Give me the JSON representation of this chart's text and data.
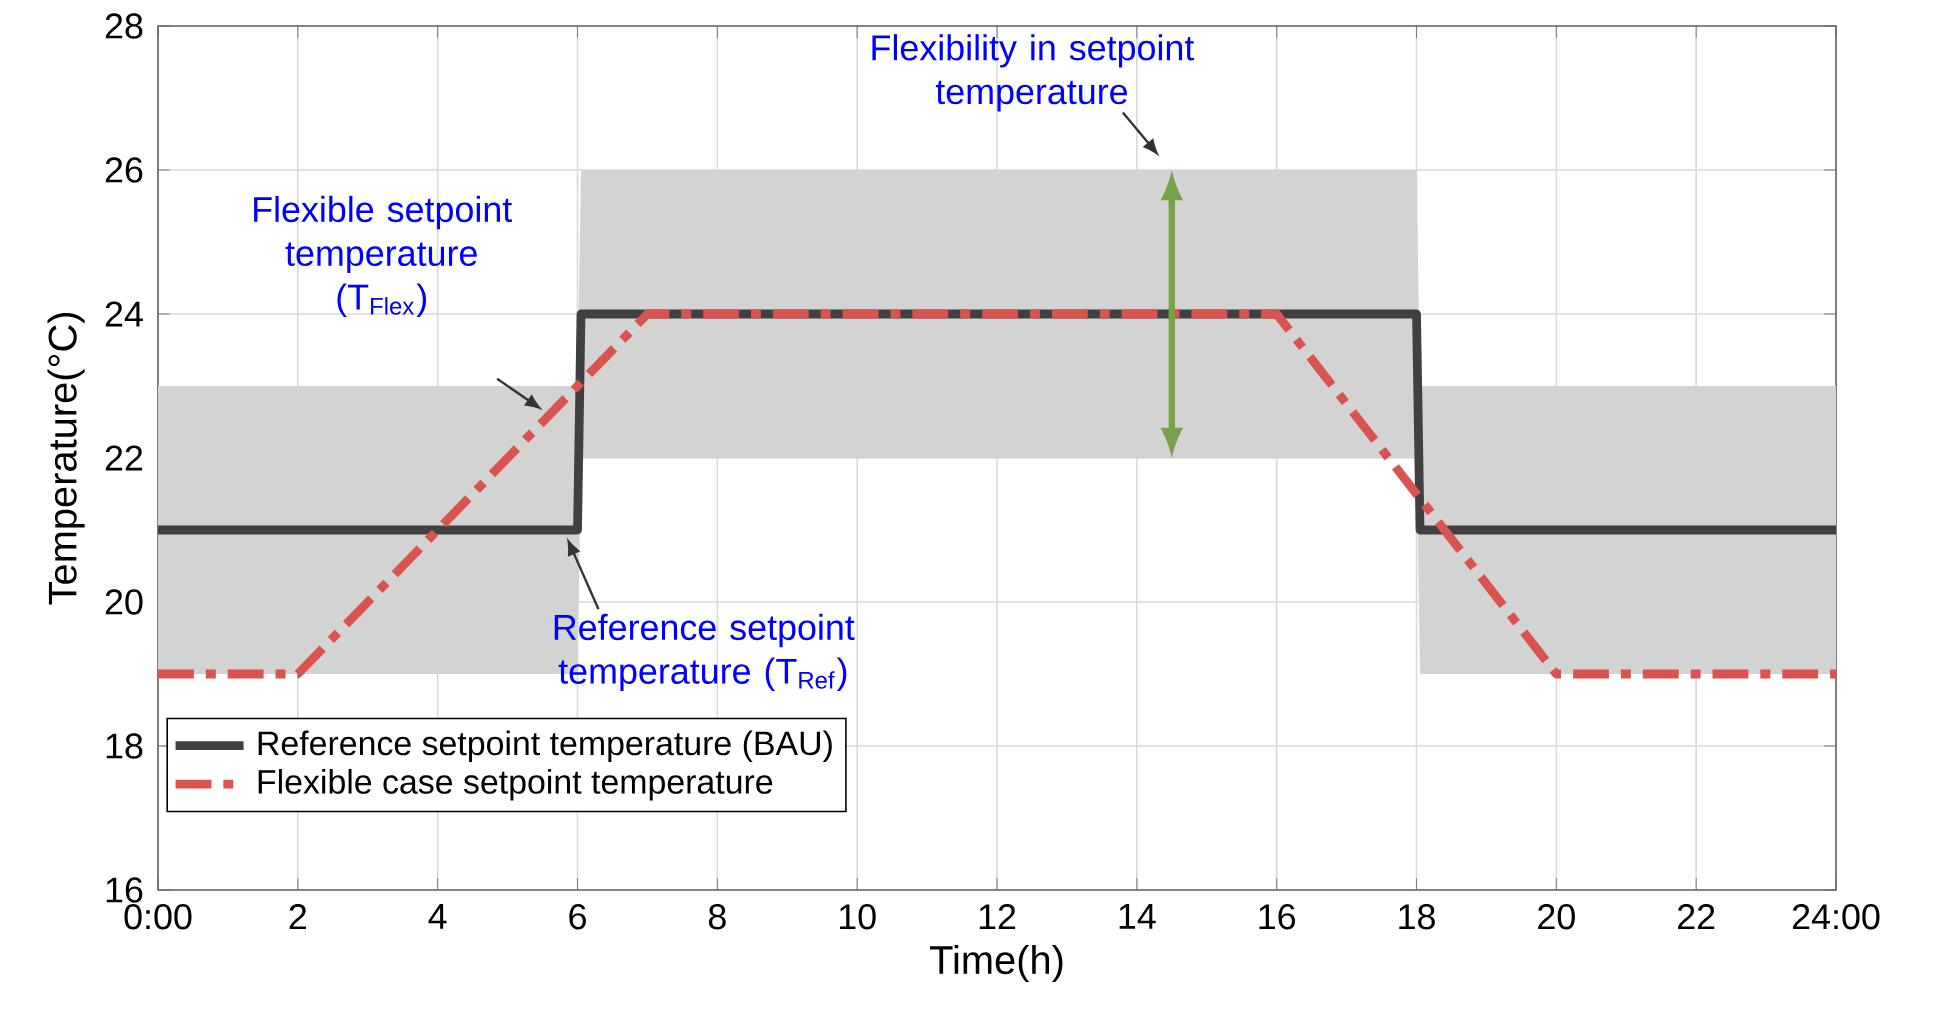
{
  "chart_data": {
    "type": "line",
    "xlabel": "Time(h)",
    "ylabel": "Temperature(°C)",
    "xlim": [
      0,
      24
    ],
    "ylim": [
      16,
      28
    ],
    "xticks": [
      {
        "value": 0,
        "label": "0:00"
      },
      2,
      4,
      6,
      8,
      10,
      12,
      14,
      16,
      18,
      20,
      22,
      {
        "value": 24,
        "label": "24:00"
      }
    ],
    "yticks": [
      16,
      18,
      20,
      22,
      24,
      26,
      28
    ],
    "grid": true,
    "legend": "bottom left",
    "series": [
      {
        "name": "Reference setpoint temperature (BAU)",
        "color": "#404040",
        "line_style": "solid",
        "x": [
          0,
          6,
          6.05,
          18,
          18.05,
          24
        ],
        "values": [
          21,
          21,
          24,
          24,
          21,
          21
        ],
        "lower": [
          19,
          19,
          22,
          22,
          19,
          19
        ],
        "upper": [
          23,
          23,
          26,
          26,
          23,
          23
        ]
      },
      {
        "name": "Flexible case setpoint temperature",
        "color": "#d9534f",
        "line_style": "dashdot",
        "x": [
          0,
          2,
          7,
          16,
          20,
          24
        ],
        "values": [
          19,
          19,
          24,
          24,
          19,
          19
        ]
      }
    ],
    "annotations": [
      {
        "text": "Flexibility in setpoint temperature",
        "x": 14.4,
        "y": 26.1
      },
      {
        "text": "Flexible setpoint temperature (T$_{Flex}$)",
        "x": 5.6,
        "y": 22.6
      },
      {
        "text": "Reference setpoint temperature (T$_{Ref}$)",
        "x": 5.8,
        "y": 21
      }
    ]
  }
}
